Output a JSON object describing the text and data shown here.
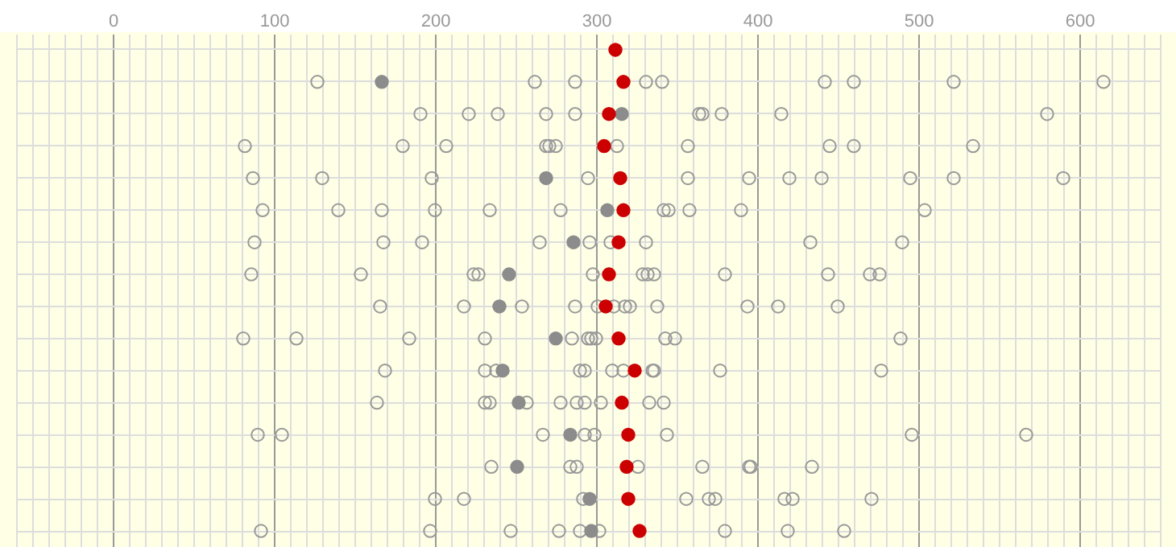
{
  "chart_data": {
    "type": "scatter",
    "orientation": "horizontal",
    "tick_labels": "x",
    "grid": true,
    "marker": "circle",
    "categories": [
      null,
      null,
      null,
      null,
      null,
      null,
      null,
      null,
      null,
      null,
      null,
      null,
      null,
      null,
      null,
      null
    ],
    "xlim": [
      -60,
      650
    ],
    "xticks": [
      {
        "value": -60,
        "label": null
      },
      {
        "value": -50,
        "label": null
      },
      {
        "value": -40,
        "label": null
      },
      {
        "value": -30,
        "label": null
      },
      {
        "value": -20,
        "label": null
      },
      {
        "value": -10,
        "label": null
      },
      0,
      {
        "value": 10,
        "label": null
      },
      {
        "value": 20,
        "label": null
      },
      {
        "value": 30,
        "label": null
      },
      {
        "value": 40,
        "label": null
      },
      {
        "value": 50,
        "label": null
      },
      {
        "value": 60,
        "label": null
      },
      {
        "value": 70,
        "label": null
      },
      {
        "value": 80,
        "label": null
      },
      {
        "value": 90,
        "label": null
      },
      100,
      {
        "value": 110,
        "label": null
      },
      {
        "value": 120,
        "label": null
      },
      {
        "value": 130,
        "label": null
      },
      {
        "value": 140,
        "label": null
      },
      {
        "value": 150,
        "label": null
      },
      {
        "value": 160,
        "label": null
      },
      {
        "value": 170,
        "label": null
      },
      {
        "value": 180,
        "label": null
      },
      {
        "value": 190,
        "label": null
      },
      200,
      {
        "value": 210,
        "label": null
      },
      {
        "value": 220,
        "label": null
      },
      {
        "value": 230,
        "label": null
      },
      {
        "value": 240,
        "label": null
      },
      {
        "value": 250,
        "label": null
      },
      {
        "value": 260,
        "label": null
      },
      {
        "value": 270,
        "label": null
      },
      {
        "value": 280,
        "label": null
      },
      {
        "value": 290,
        "label": null
      },
      300,
      {
        "value": 310,
        "label": null
      },
      {
        "value": 320,
        "label": null
      },
      {
        "value": 330,
        "label": null
      },
      {
        "value": 340,
        "label": null
      },
      {
        "value": 350,
        "label": null
      },
      {
        "value": 360,
        "label": null
      },
      {
        "value": 370,
        "label": null
      },
      {
        "value": 380,
        "label": null
      },
      {
        "value": 390,
        "label": null
      },
      400,
      {
        "value": 410,
        "label": null
      },
      {
        "value": 420,
        "label": null
      },
      {
        "value": 430,
        "label": null
      },
      {
        "value": 440,
        "label": null
      },
      {
        "value": 450,
        "label": null
      },
      {
        "value": 460,
        "label": null
      },
      {
        "value": 470,
        "label": null
      },
      {
        "value": 480,
        "label": null
      },
      {
        "value": 490,
        "label": null
      },
      500,
      {
        "value": 510,
        "label": null
      },
      {
        "value": 520,
        "label": null
      },
      {
        "value": 530,
        "label": null
      },
      {
        "value": 540,
        "label": null
      },
      {
        "value": 550,
        "label": null
      },
      {
        "value": 560,
        "label": null
      },
      {
        "value": 570,
        "label": null
      },
      {
        "value": 580,
        "label": null
      },
      {
        "value": 590,
        "label": null
      },
      600,
      {
        "value": 610,
        "label": null
      },
      {
        "value": 620,
        "label": null
      },
      {
        "value": 630,
        "label": null
      },
      {
        "value": 640,
        "label": null
      },
      {
        "value": 650,
        "label": null
      }
    ],
    "series": [
      {
        "color": "#999999",
        "values": [
          null,
          127,
          191,
          82,
          87,
          93,
          88,
          86,
          166,
          81,
          169,
          164,
          90,
          235,
          200,
          92
        ]
      },
      {
        "color": "#999999",
        "values": [
          null,
          262,
          221,
          180,
          130,
          140,
          168,
          154,
          218,
          114,
          231,
          231,
          105,
          284,
          218,
          197
        ]
      },
      {
        "color": "#999999",
        "values": [
          null,
          287,
          239,
          207,
          198,
          167,
          192,
          224,
          254,
          184,
          238,
          234,
          267,
          288,
          292,
          247
        ]
      },
      {
        "color": "#999999",
        "values": [
          null,
          331,
          269,
          269,
          295,
          200,
          265,
          227,
          287,
          231,
          290,
          257,
          293,
          326,
          356,
          277
        ]
      },
      {
        "color": "#999999",
        "values": [
          null,
          341,
          287,
          271,
          357,
          234,
          296,
          298,
          301,
          285,
          293,
          278,
          299,
          366,
          370,
          290
        ]
      },
      {
        "color": "#999999",
        "values": [
          null,
          442,
          364,
          275,
          395,
          278,
          309,
          329,
          311,
          295,
          310,
          288,
          344,
          395,
          374,
          302
        ]
      },
      {
        "color": "#999999",
        "values": [
          null,
          460,
          366,
          313,
          420,
          342,
          331,
          332,
          318,
          297,
          317,
          293,
          496,
          396,
          417,
          380
        ]
      },
      {
        "color": "#999999",
        "values": [
          null,
          522,
          378,
          357,
          440,
          345,
          433,
          336,
          321,
          300,
          335,
          303,
          567,
          434,
          422,
          419
        ]
      },
      {
        "color": "#999999",
        "values": [
          null,
          615,
          415,
          445,
          495,
          358,
          490,
          380,
          338,
          343,
          336,
          333,
          null,
          null,
          471,
          454
        ]
      },
      {
        "color": "#999999",
        "values": [
          null,
          null,
          580,
          460,
          522,
          390,
          null,
          444,
          394,
          349,
          377,
          342,
          null,
          null,
          null,
          null
        ]
      },
      {
        "color": "#999999",
        "values": [
          null,
          null,
          null,
          534,
          590,
          504,
          null,
          470,
          413,
          489,
          477,
          null,
          null,
          null,
          null,
          null
        ]
      },
      {
        "color": "#999999",
        "values": [
          null,
          null,
          null,
          null,
          null,
          null,
          null,
          476,
          450,
          null,
          null,
          null,
          null,
          null,
          null,
          null
        ]
      },
      {
        "color": "#8c8c8c",
        "values": [
          null,
          167,
          316,
          null,
          269,
          307,
          286,
          246,
          240,
          275,
          242,
          252,
          284,
          251,
          296,
          297
        ]
      },
      {
        "color": "#cc0000",
        "values": [
          312,
          317,
          308,
          305,
          315,
          317,
          314,
          308,
          306,
          314,
          324,
          316,
          320,
          319,
          320,
          327
        ]
      }
    ]
  }
}
